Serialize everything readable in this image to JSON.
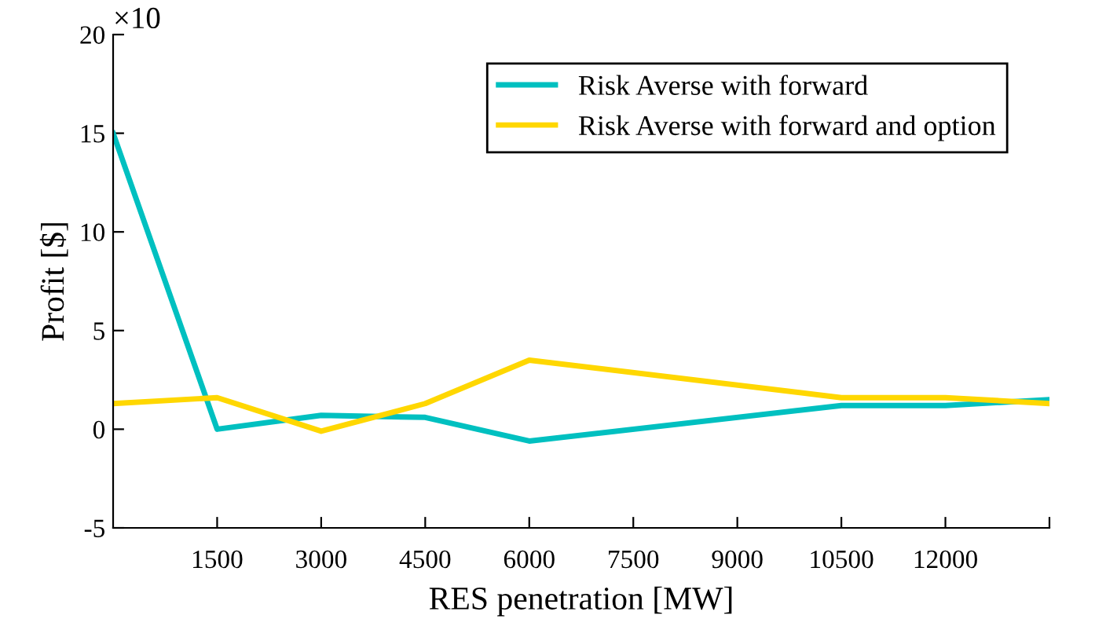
{
  "chart_data": {
    "type": "line",
    "xlabel": "RES penetration [MW]",
    "ylabel": "Profit [$]",
    "annotations": [
      "×10"
    ],
    "x": [
      0,
      1500,
      3000,
      4500,
      6000,
      10500,
      12000,
      13500
    ],
    "series": [
      {
        "name": "Risk Averse with forward",
        "color": "#00c0c0",
        "values": [
          15,
          0,
          0.7,
          0.6,
          -0.6,
          1.2,
          1.2,
          1.5
        ]
      },
      {
        "name": "Risk Averse with forward and option",
        "color": "#ffd700",
        "values": [
          1.3,
          1.6,
          -0.1,
          1.3,
          3.5,
          1.6,
          1.6,
          1.3
        ]
      }
    ],
    "xlim": [
      0,
      13500
    ],
    "xticks": [
      1500,
      3000,
      4500,
      6000,
      7500,
      9000,
      10500,
      12000,
      {
        "value": 13500,
        "label": null
      }
    ],
    "ylim": [
      -5,
      20
    ],
    "yticks": [
      -5,
      0,
      5,
      10,
      15,
      20
    ],
    "grid": false,
    "legend": "top right",
    "marker": "none",
    "line_style": "solid"
  }
}
